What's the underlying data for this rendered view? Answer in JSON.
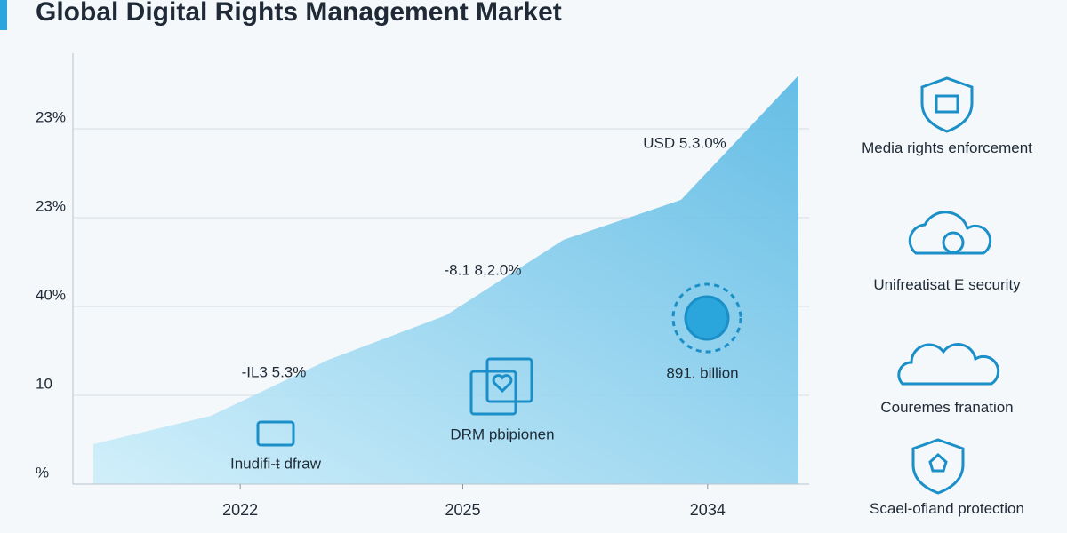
{
  "chart_data": {
    "type": "area",
    "title": "Global Digital Rights Management Market",
    "categories": [
      null,
      "2022",
      null,
      "2025",
      null,
      "2034",
      null
    ],
    "values": [
      0.45,
      0.77,
      1.4,
      1.9,
      2.75,
      3.2,
      4.6
    ],
    "color": "#7ccbea",
    "ylim": [
      0,
      4.85
    ],
    "yticks": [
      {
        "value": 0,
        "label": "%"
      },
      {
        "value": 1,
        "label": "10"
      },
      {
        "value": 2,
        "label": "40%"
      },
      {
        "value": 3,
        "label": "23%"
      },
      {
        "value": 4,
        "label": "23%"
      }
    ],
    "grid": true,
    "annotations": [
      "USD 5.3.0%",
      "-8.1 8,2.0%",
      "-IL3 5.3%",
      "DRM pbipionen",
      "891. billion",
      "Inudifi-ŧ dfraw"
    ]
  },
  "features": [
    "Media rights enforcement",
    "Unifreatisat E security",
    "Couremes franation",
    "Scael-ofiand protection"
  ]
}
